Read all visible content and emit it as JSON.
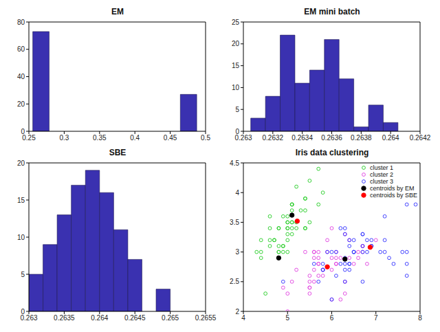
{
  "chart_data": [
    {
      "type": "histogram",
      "title": "EM",
      "bins": [
        0.2555,
        0.2787,
        0.3019,
        0.3251,
        0.3483,
        0.3715,
        0.3947,
        0.4179,
        0.4411,
        0.4643,
        0.4875
      ],
      "counts": [
        73,
        0,
        0,
        0,
        0,
        0,
        0,
        0,
        0,
        27
      ],
      "color": "#3a31b0",
      "xlim": [
        0.25,
        0.5
      ],
      "xticks": [
        0.25,
        0.3,
        0.35,
        0.4,
        0.45,
        0.5
      ],
      "ylim": [
        0,
        80
      ],
      "yticks": [
        0,
        20,
        40,
        60,
        80
      ]
    },
    {
      "type": "histogram",
      "title": "EM mini batch",
      "bins": [
        0.26305,
        0.26315,
        0.26325,
        0.26335,
        0.26345,
        0.26355,
        0.26365,
        0.26375,
        0.26385,
        0.26395,
        0.26405
      ],
      "counts": [
        3,
        8,
        22,
        11,
        14,
        21,
        12,
        1,
        6,
        2
      ],
      "color": "#3a31b0",
      "xlim": [
        0.263,
        0.2642
      ],
      "xticks": [
        0.263,
        0.2632,
        0.2634,
        0.2636,
        0.2638,
        0.264,
        0.2642
      ],
      "ylim": [
        0,
        25
      ],
      "yticks": [
        0,
        5,
        10,
        15,
        20,
        25
      ]
    },
    {
      "type": "histogram",
      "title": "SBE",
      "bins": [
        0.263,
        0.2632,
        0.2634,
        0.2636,
        0.2638,
        0.264,
        0.2642,
        0.2644,
        0.2646,
        0.2648,
        0.265
      ],
      "counts": [
        5,
        9,
        13,
        17,
        19,
        16,
        11,
        7,
        0,
        3
      ],
      "color": "#3a31b0",
      "xlim": [
        0.263,
        0.2655
      ],
      "xticks": [
        0.263,
        0.2635,
        0.264,
        0.2645,
        0.265,
        0.2655
      ],
      "ylim": [
        0,
        20
      ],
      "yticks": [
        0,
        5,
        10,
        15,
        20
      ]
    },
    {
      "type": "scatter",
      "title": "Iris data clustering",
      "xlim": [
        4,
        8
      ],
      "xticks": [
        4,
        5,
        6,
        7,
        8
      ],
      "ylim": [
        2,
        4.5
      ],
      "yticks": [
        2,
        2.5,
        3,
        3.5,
        4,
        4.5
      ],
      "legend": "upper right",
      "series": [
        {
          "name": "cluster 1",
          "color": "#22cc22",
          "marker": "circle",
          "x": [
            5.1,
            4.9,
            4.7,
            4.6,
            5.0,
            5.4,
            4.6,
            5.0,
            4.4,
            4.9,
            5.4,
            4.8,
            4.8,
            4.3,
            5.8,
            5.7,
            5.4,
            5.1,
            5.7,
            5.1,
            5.4,
            5.1,
            4.6,
            5.1,
            4.8,
            5.0,
            5.0,
            5.2,
            5.2,
            4.7,
            4.8,
            5.4,
            5.2,
            5.5,
            4.9,
            5.0,
            5.5,
            4.9,
            4.4,
            5.1,
            5.0,
            4.5,
            4.4,
            5.0,
            5.1,
            4.8,
            5.1,
            4.6,
            5.3,
            5.0
          ],
          "y": [
            3.5,
            3.0,
            3.2,
            3.1,
            3.6,
            3.9,
            3.4,
            3.4,
            2.9,
            3.1,
            3.7,
            3.4,
            3.0,
            3.0,
            4.0,
            4.4,
            3.9,
            3.5,
            3.8,
            3.8,
            3.4,
            3.7,
            3.6,
            3.3,
            3.4,
            3.0,
            3.4,
            3.5,
            3.4,
            3.2,
            3.1,
            3.4,
            4.1,
            4.2,
            3.1,
            3.2,
            3.5,
            3.6,
            3.0,
            3.4,
            3.5,
            2.3,
            3.2,
            3.5,
            3.8,
            3.0,
            3.8,
            3.2,
            3.7,
            3.3
          ]
        },
        {
          "name": "cluster 2",
          "color": "#e040e0",
          "marker": "circle",
          "x": [
            7.0,
            6.4,
            6.9,
            5.5,
            6.5,
            5.7,
            6.3,
            4.9,
            6.6,
            5.2,
            5.0,
            5.9,
            6.0,
            6.1,
            5.6,
            6.7,
            5.6,
            5.8,
            6.2,
            5.6,
            5.9,
            6.1,
            6.3,
            6.1,
            6.4,
            6.6,
            6.8,
            6.7,
            6.0,
            5.7,
            5.5,
            5.5,
            5.8,
            6.0,
            5.4,
            6.0,
            6.7,
            6.3,
            5.6,
            5.5,
            5.5,
            6.1,
            5.8,
            5.0,
            5.6,
            5.7,
            5.7,
            6.2,
            5.1,
            5.7
          ],
          "y": [
            3.2,
            3.2,
            3.1,
            2.3,
            2.8,
            2.8,
            3.3,
            2.4,
            2.9,
            2.7,
            2.0,
            3.0,
            2.2,
            2.9,
            2.9,
            3.1,
            3.0,
            2.7,
            2.2,
            2.5,
            3.2,
            2.8,
            2.5,
            2.8,
            2.9,
            3.0,
            2.8,
            3.0,
            2.9,
            2.6,
            2.4,
            2.4,
            2.7,
            2.7,
            3.0,
            3.4,
            3.1,
            2.3,
            3.0,
            2.5,
            2.6,
            3.0,
            2.6,
            2.3,
            2.7,
            3.0,
            2.9,
            2.9,
            2.5,
            2.8
          ]
        },
        {
          "name": "cluster 3",
          "color": "#3030ff",
          "marker": "circle",
          "x": [
            6.3,
            5.8,
            7.1,
            6.3,
            6.5,
            7.6,
            4.9,
            7.3,
            6.7,
            7.2,
            6.5,
            6.4,
            6.8,
            5.7,
            5.8,
            6.4,
            6.5,
            7.7,
            7.7,
            6.0,
            6.9,
            5.6,
            7.7,
            6.3,
            6.7,
            7.2,
            6.2,
            6.1,
            6.4,
            7.2,
            7.4,
            7.9,
            6.4,
            6.3,
            6.1,
            7.7,
            6.3,
            6.4,
            6.0,
            6.9,
            6.7,
            6.9,
            5.8,
            6.8,
            6.7,
            6.7,
            6.3,
            6.5,
            6.2,
            5.9
          ],
          "y": [
            3.3,
            2.7,
            3.0,
            2.9,
            3.0,
            3.0,
            2.5,
            2.9,
            2.5,
            3.6,
            3.2,
            2.7,
            3.0,
            2.5,
            2.8,
            3.2,
            3.0,
            3.8,
            2.6,
            2.2,
            3.2,
            2.8,
            2.8,
            2.7,
            3.3,
            3.2,
            2.8,
            3.0,
            2.8,
            3.0,
            2.8,
            3.8,
            2.8,
            2.8,
            2.6,
            3.0,
            3.4,
            3.1,
            3.0,
            3.1,
            3.1,
            3.1,
            2.7,
            3.2,
            3.3,
            3.0,
            2.5,
            3.0,
            3.4,
            3.0
          ]
        },
        {
          "name": "centroids by EM",
          "color": "#000000",
          "marker": "dot",
          "x": [
            4.8,
            5.1,
            6.3
          ],
          "y": [
            2.9,
            3.62,
            2.88
          ]
        },
        {
          "name": "centroids by SBE",
          "color": "#ff0000",
          "marker": "dot",
          "x": [
            5.22,
            5.9,
            6.87
          ],
          "y": [
            3.52,
            2.75,
            3.08
          ]
        }
      ]
    }
  ]
}
